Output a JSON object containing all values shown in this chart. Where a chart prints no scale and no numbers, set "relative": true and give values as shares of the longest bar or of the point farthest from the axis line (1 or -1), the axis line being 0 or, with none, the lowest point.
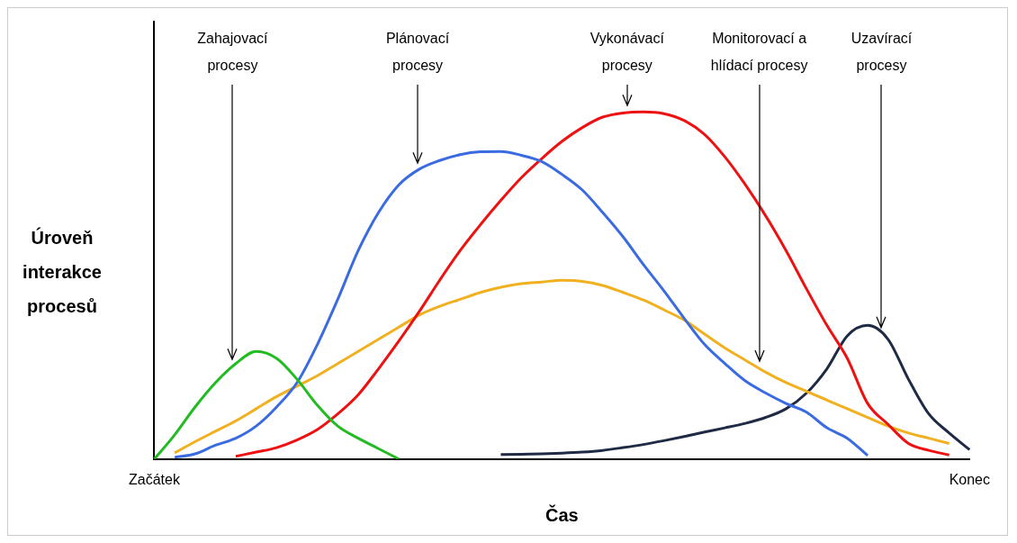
{
  "chart_data": {
    "type": "line",
    "relative": true,
    "xlabel": "Čas",
    "ylabel": "Úroveň interakce procesů",
    "legend": false,
    "categories": [
      "Začátek",
      null,
      null,
      null,
      null,
      null,
      null,
      null,
      null,
      null,
      null,
      null,
      null,
      null,
      null,
      null,
      null,
      null,
      null,
      null,
      null,
      null,
      null,
      null,
      null,
      null,
      null,
      null,
      null,
      null,
      null,
      null,
      null,
      null,
      null,
      null,
      null,
      null,
      null,
      null,
      "Konec"
    ],
    "series": [
      {
        "color": "#22bb22",
        "values": [
          0,
          0.07,
          0.15,
          0.22,
          0.275,
          0.31,
          0.29,
          0.23,
          0.155,
          0.095,
          0.06,
          0.03,
          0,
          null,
          null,
          null,
          null,
          null,
          null,
          null,
          null,
          null,
          null,
          null,
          null,
          null,
          null,
          null,
          null,
          null,
          null,
          null,
          null,
          null,
          null,
          null,
          null,
          null,
          null,
          null,
          null
        ]
      },
      {
        "color": "#3b6be0",
        "values": [
          null,
          0.005,
          0.015,
          0.04,
          0.06,
          0.095,
          0.15,
          0.22,
          0.33,
          0.46,
          0.6,
          0.71,
          0.79,
          0.835,
          0.86,
          0.877,
          0.885,
          0.886,
          0.875,
          0.857,
          0.82,
          0.775,
          0.71,
          0.64,
          0.56,
          0.485,
          0.405,
          0.33,
          0.275,
          0.225,
          0.19,
          0.16,
          0.135,
          0.09,
          0.06,
          0.01,
          null,
          null,
          null,
          null,
          null
        ]
      },
      {
        "color": "#ee1111",
        "values": [
          null,
          null,
          null,
          null,
          0.008,
          0.02,
          0.033,
          0.055,
          0.085,
          0.13,
          0.185,
          0.26,
          0.34,
          0.425,
          0.515,
          0.6,
          0.675,
          0.745,
          0.81,
          0.865,
          0.915,
          0.955,
          0.985,
          0.997,
          1,
          0.995,
          0.975,
          0.935,
          0.87,
          0.79,
          0.7,
          0.6,
          0.49,
          0.385,
          0.29,
          0.16,
          0.1,
          0.045,
          0.025,
          0.012,
          null
        ]
      },
      {
        "color": "#f0b020",
        "values": [
          null,
          0.018,
          0.05,
          0.08,
          0.11,
          0.145,
          0.18,
          0.21,
          0.24,
          0.275,
          0.31,
          0.345,
          0.38,
          0.415,
          0.44,
          0.46,
          0.48,
          0.495,
          0.505,
          0.51,
          0.515,
          0.512,
          0.5,
          0.48,
          0.458,
          0.43,
          0.4,
          0.36,
          0.32,
          0.285,
          0.25,
          0.22,
          0.195,
          0.17,
          0.145,
          0.12,
          0.095,
          0.075,
          0.06,
          0.045,
          null
        ]
      },
      {
        "color": "#1f2a44",
        "values": [
          null,
          null,
          null,
          null,
          null,
          null,
          null,
          null,
          null,
          null,
          null,
          null,
          null,
          null,
          null,
          null,
          null,
          0.013,
          0.014,
          0.015,
          0.017,
          0.02,
          0.025,
          0.033,
          0.042,
          0.053,
          0.065,
          0.078,
          0.09,
          0.103,
          0.12,
          0.145,
          0.19,
          0.26,
          0.355,
          0.385,
          0.345,
          0.23,
          0.13,
          0.075,
          0.027
        ]
      }
    ],
    "annotations": [
      "Zahajovací procesy",
      "Plánovací procesy",
      "Vykonávací procesy",
      "Monitorovací a hlídací procesy",
      "Uzavírací procesy"
    ]
  }
}
